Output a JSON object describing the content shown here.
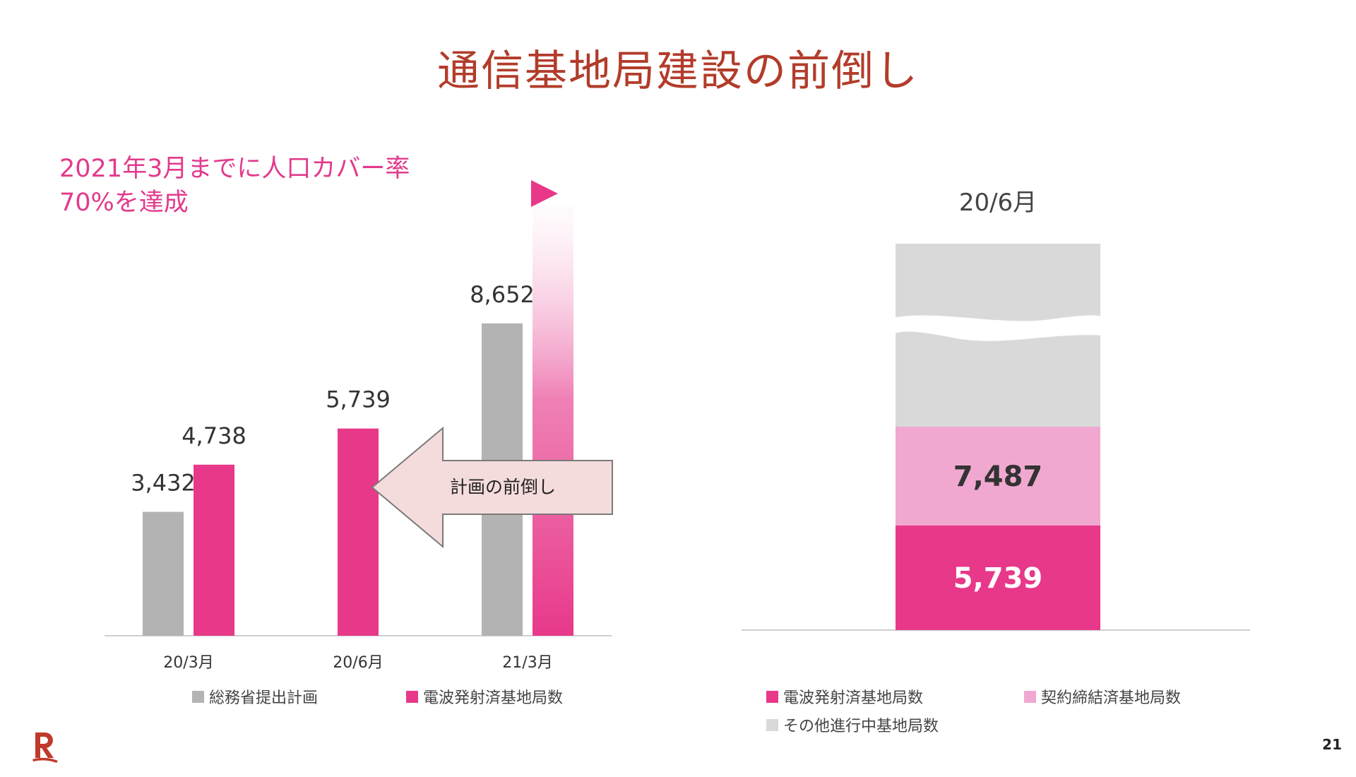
{
  "slide": {
    "title": "通信基地局建設の前倒し",
    "headline_lines": [
      "2021年3月までに人口カバー率",
      "70%を達成"
    ],
    "page_number": "21"
  },
  "colors": {
    "title": "#b23c2a",
    "plan": "#b3b3b3",
    "emitted": "#e8388a",
    "contracted": "#f1a8d0",
    "other": "#d9d9d9",
    "arrow_fill": "#f5dcdc",
    "headline": "#e23a8c"
  },
  "icons": {
    "triangle_marker": "right-triangle-icon",
    "arrow": "left-arrow-icon",
    "logo": "rakuten-r-logo"
  },
  "chart_data": [
    {
      "type": "bar",
      "categories": [
        "20/3月",
        "20/6月",
        "21/3月"
      ],
      "series": [
        {
          "name": "総務省提出計画",
          "values": [
            3432,
            null,
            8652
          ]
        },
        {
          "name": "電波発射済基地局数",
          "values": [
            4738,
            5739,
            null
          ]
        }
      ],
      "data_labels": [
        "3,432",
        "4,738",
        "5,739",
        "8,652"
      ],
      "annotation": "計画の前倒し",
      "legend": "bottom",
      "grid": false
    },
    {
      "type": "bar",
      "stacked": true,
      "categories": [
        "20/6月"
      ],
      "series": [
        {
          "name": "電波発射済基地局数",
          "values": [
            5739
          ],
          "label": "5,739"
        },
        {
          "name": "契約締結済基地局数",
          "values": [
            7487
          ],
          "label": "7,487"
        },
        {
          "name": "その他進行中基地局数",
          "values": [
            null
          ]
        }
      ],
      "axis_break": true,
      "legend": "bottom",
      "grid": false
    }
  ]
}
